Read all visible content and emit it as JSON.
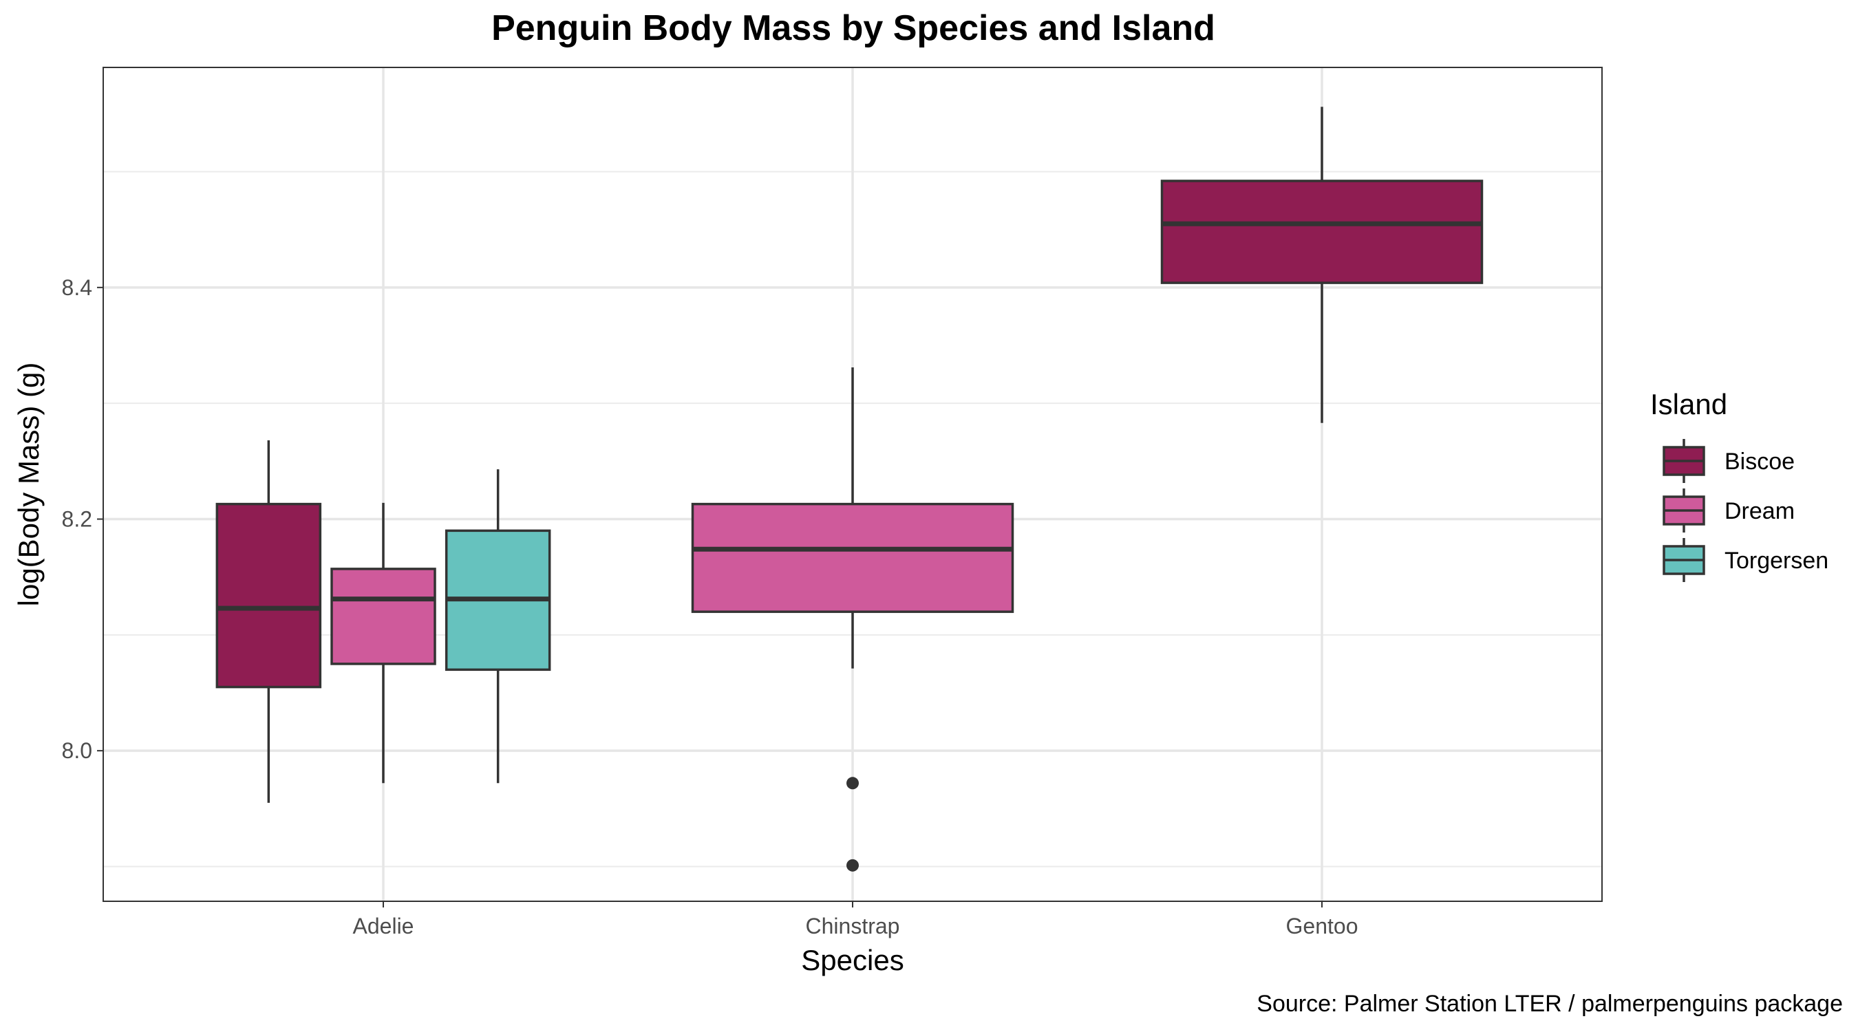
{
  "chart_data": {
    "type": "boxplot",
    "title": "Penguin Body Mass by Species and Island",
    "xlabel": "Species",
    "ylabel": "log(Body Mass) (g)",
    "caption": "Source: Palmer Station LTER / palmerpenguins package",
    "categories": [
      "Adelie",
      "Chinstrap",
      "Gentoo"
    ],
    "ylim": [
      7.87,
      8.59
    ],
    "yticks": [
      8.0,
      8.2,
      8.4
    ],
    "ytick_labels": [
      "8.0",
      "8.2",
      "8.4"
    ],
    "grid": true,
    "legend": {
      "title": "Island",
      "position": "right",
      "entries": [
        "Biscoe",
        "Dream",
        "Torgersen"
      ]
    },
    "colors": {
      "Biscoe": "#8f1d52",
      "Dream": "#cf5a9b",
      "Torgersen": "#66c2be"
    },
    "boxes": [
      {
        "species": "Adelie",
        "island": "Biscoe",
        "whisker_low": 7.955,
        "q1": 8.055,
        "median": 8.123,
        "q3": 8.213,
        "whisker_high": 8.268,
        "outliers": []
      },
      {
        "species": "Adelie",
        "island": "Dream",
        "whisker_low": 7.972,
        "q1": 8.075,
        "median": 8.131,
        "q3": 8.157,
        "whisker_high": 8.214,
        "outliers": []
      },
      {
        "species": "Adelie",
        "island": "Torgersen",
        "whisker_low": 7.972,
        "q1": 8.07,
        "median": 8.131,
        "q3": 8.19,
        "whisker_high": 8.243,
        "outliers": []
      },
      {
        "species": "Chinstrap",
        "island": "Dream",
        "whisker_low": 8.071,
        "q1": 8.12,
        "median": 8.174,
        "q3": 8.213,
        "whisker_high": 8.331,
        "outliers": [
          7.972,
          7.901
        ]
      },
      {
        "species": "Gentoo",
        "island": "Biscoe",
        "whisker_low": 8.283,
        "q1": 8.404,
        "median": 8.455,
        "q3": 8.492,
        "whisker_high": 8.556,
        "outliers": []
      }
    ]
  }
}
